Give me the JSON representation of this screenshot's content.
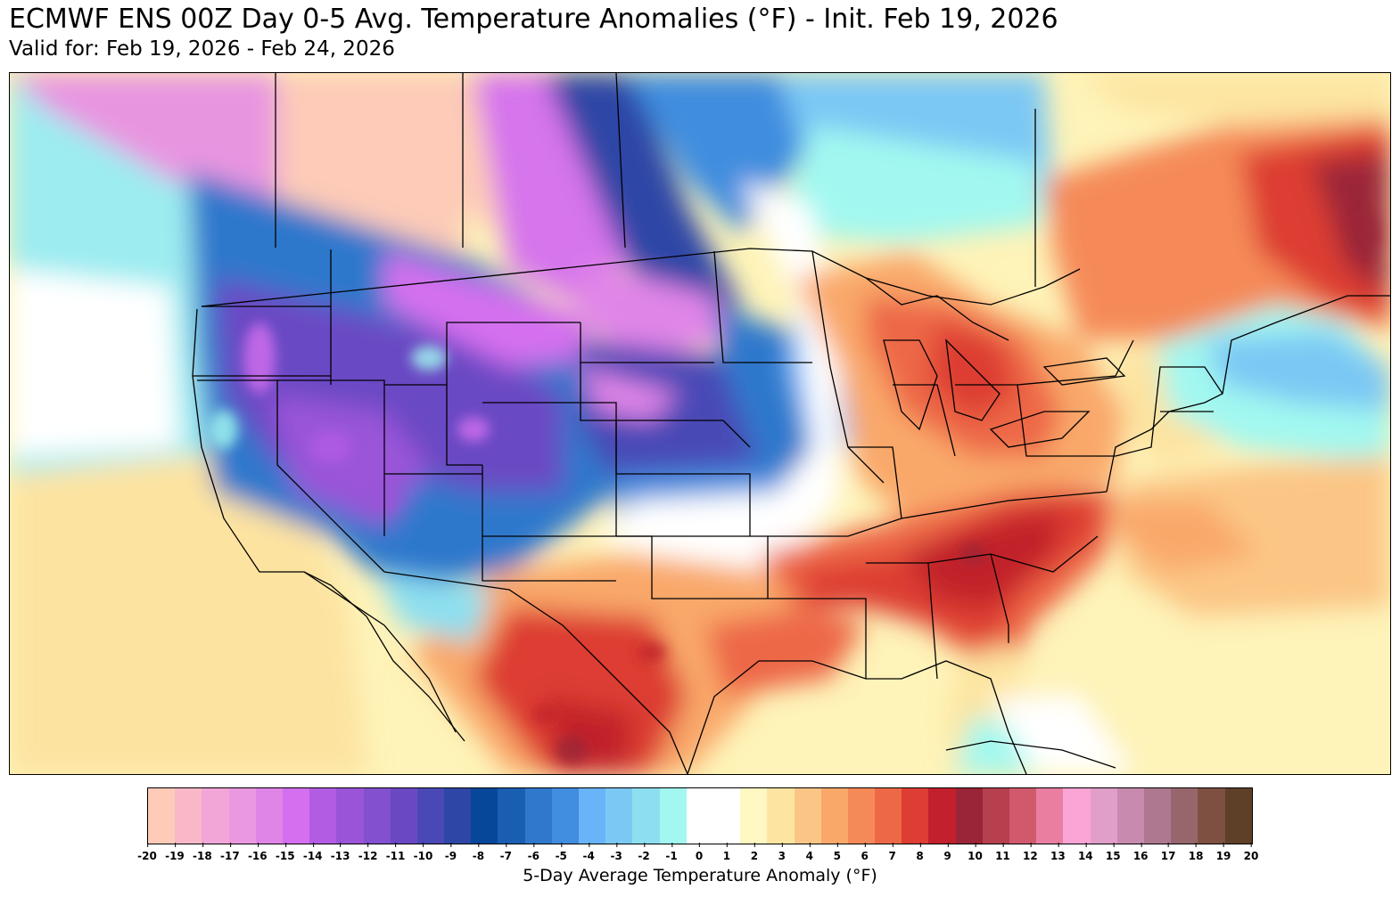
{
  "header": {
    "title": "ECMWF ENS 00Z Day 0-5 Avg. Temperature Anomalies (°F) - Init. Feb 19, 2026",
    "valid": "Valid for: Feb 19, 2026 - Feb 24, 2026"
  },
  "map": {
    "region": "Contiguous United States, southern Canada, northern Mexico",
    "variable": "5-day average 2m temperature anomaly",
    "units": "°F",
    "features": [
      {
        "area": "Southeast US (Georgia, South Carolina, North Carolina, Alabama)",
        "anomaly": 9
      },
      {
        "area": "Ohio Valley / Great Lakes",
        "anomaly": 7
      },
      {
        "area": "Northern Mexico / West Texas",
        "anomaly": 10
      },
      {
        "area": "Eastern Canada (Quebec)",
        "anomaly": 12
      },
      {
        "area": "Great Basin / Rockies",
        "anomaly": -12
      },
      {
        "area": "Northern Plains (Dakotas, Nebraska)",
        "anomaly": -11
      },
      {
        "area": "Saskatchewan / Manitoba",
        "anomaly": -20
      },
      {
        "area": "Pacific Northwest coast",
        "anomaly": -3
      }
    ]
  },
  "colorbar": {
    "label": "5-Day Average Temperature Anomaly (°F)",
    "ticks": [
      -20,
      -19,
      -18,
      -17,
      -16,
      -15,
      -14,
      -13,
      -12,
      -11,
      -10,
      -9,
      -8,
      -7,
      -6,
      -5,
      -4,
      -3,
      -2,
      -1,
      0,
      1,
      2,
      3,
      4,
      5,
      6,
      7,
      8,
      9,
      10,
      11,
      12,
      13,
      14,
      15,
      16,
      17,
      18,
      19,
      20
    ],
    "colors": [
      "#fdcbb7",
      "#f9b8c8",
      "#f2a6d7",
      "#ea98df",
      "#e085e8",
      "#d470ef",
      "#b25ce4",
      "#9a54d8",
      "#8350cf",
      "#6a48c4",
      "#4a48b6",
      "#2e47a6",
      "#06479a",
      "#1a5eb2",
      "#2f78cc",
      "#418ddf",
      "#69b4f8",
      "#7cc8f4",
      "#8ddff0",
      "#a2f8f0",
      "#ffffff",
      "#ffffff",
      "#fff8c2",
      "#fde5a1",
      "#fbc685",
      "#f9a86a",
      "#f58a58",
      "#ed6846",
      "#dd3d33",
      "#c1202c",
      "#9b2538",
      "#b6404e",
      "#d05a6c",
      "#ea7ea0",
      "#fba4d6",
      "#e19ec9",
      "#c88aaf",
      "#ad7890",
      "#97666d",
      "#7e5042",
      "#5e4028"
    ]
  }
}
